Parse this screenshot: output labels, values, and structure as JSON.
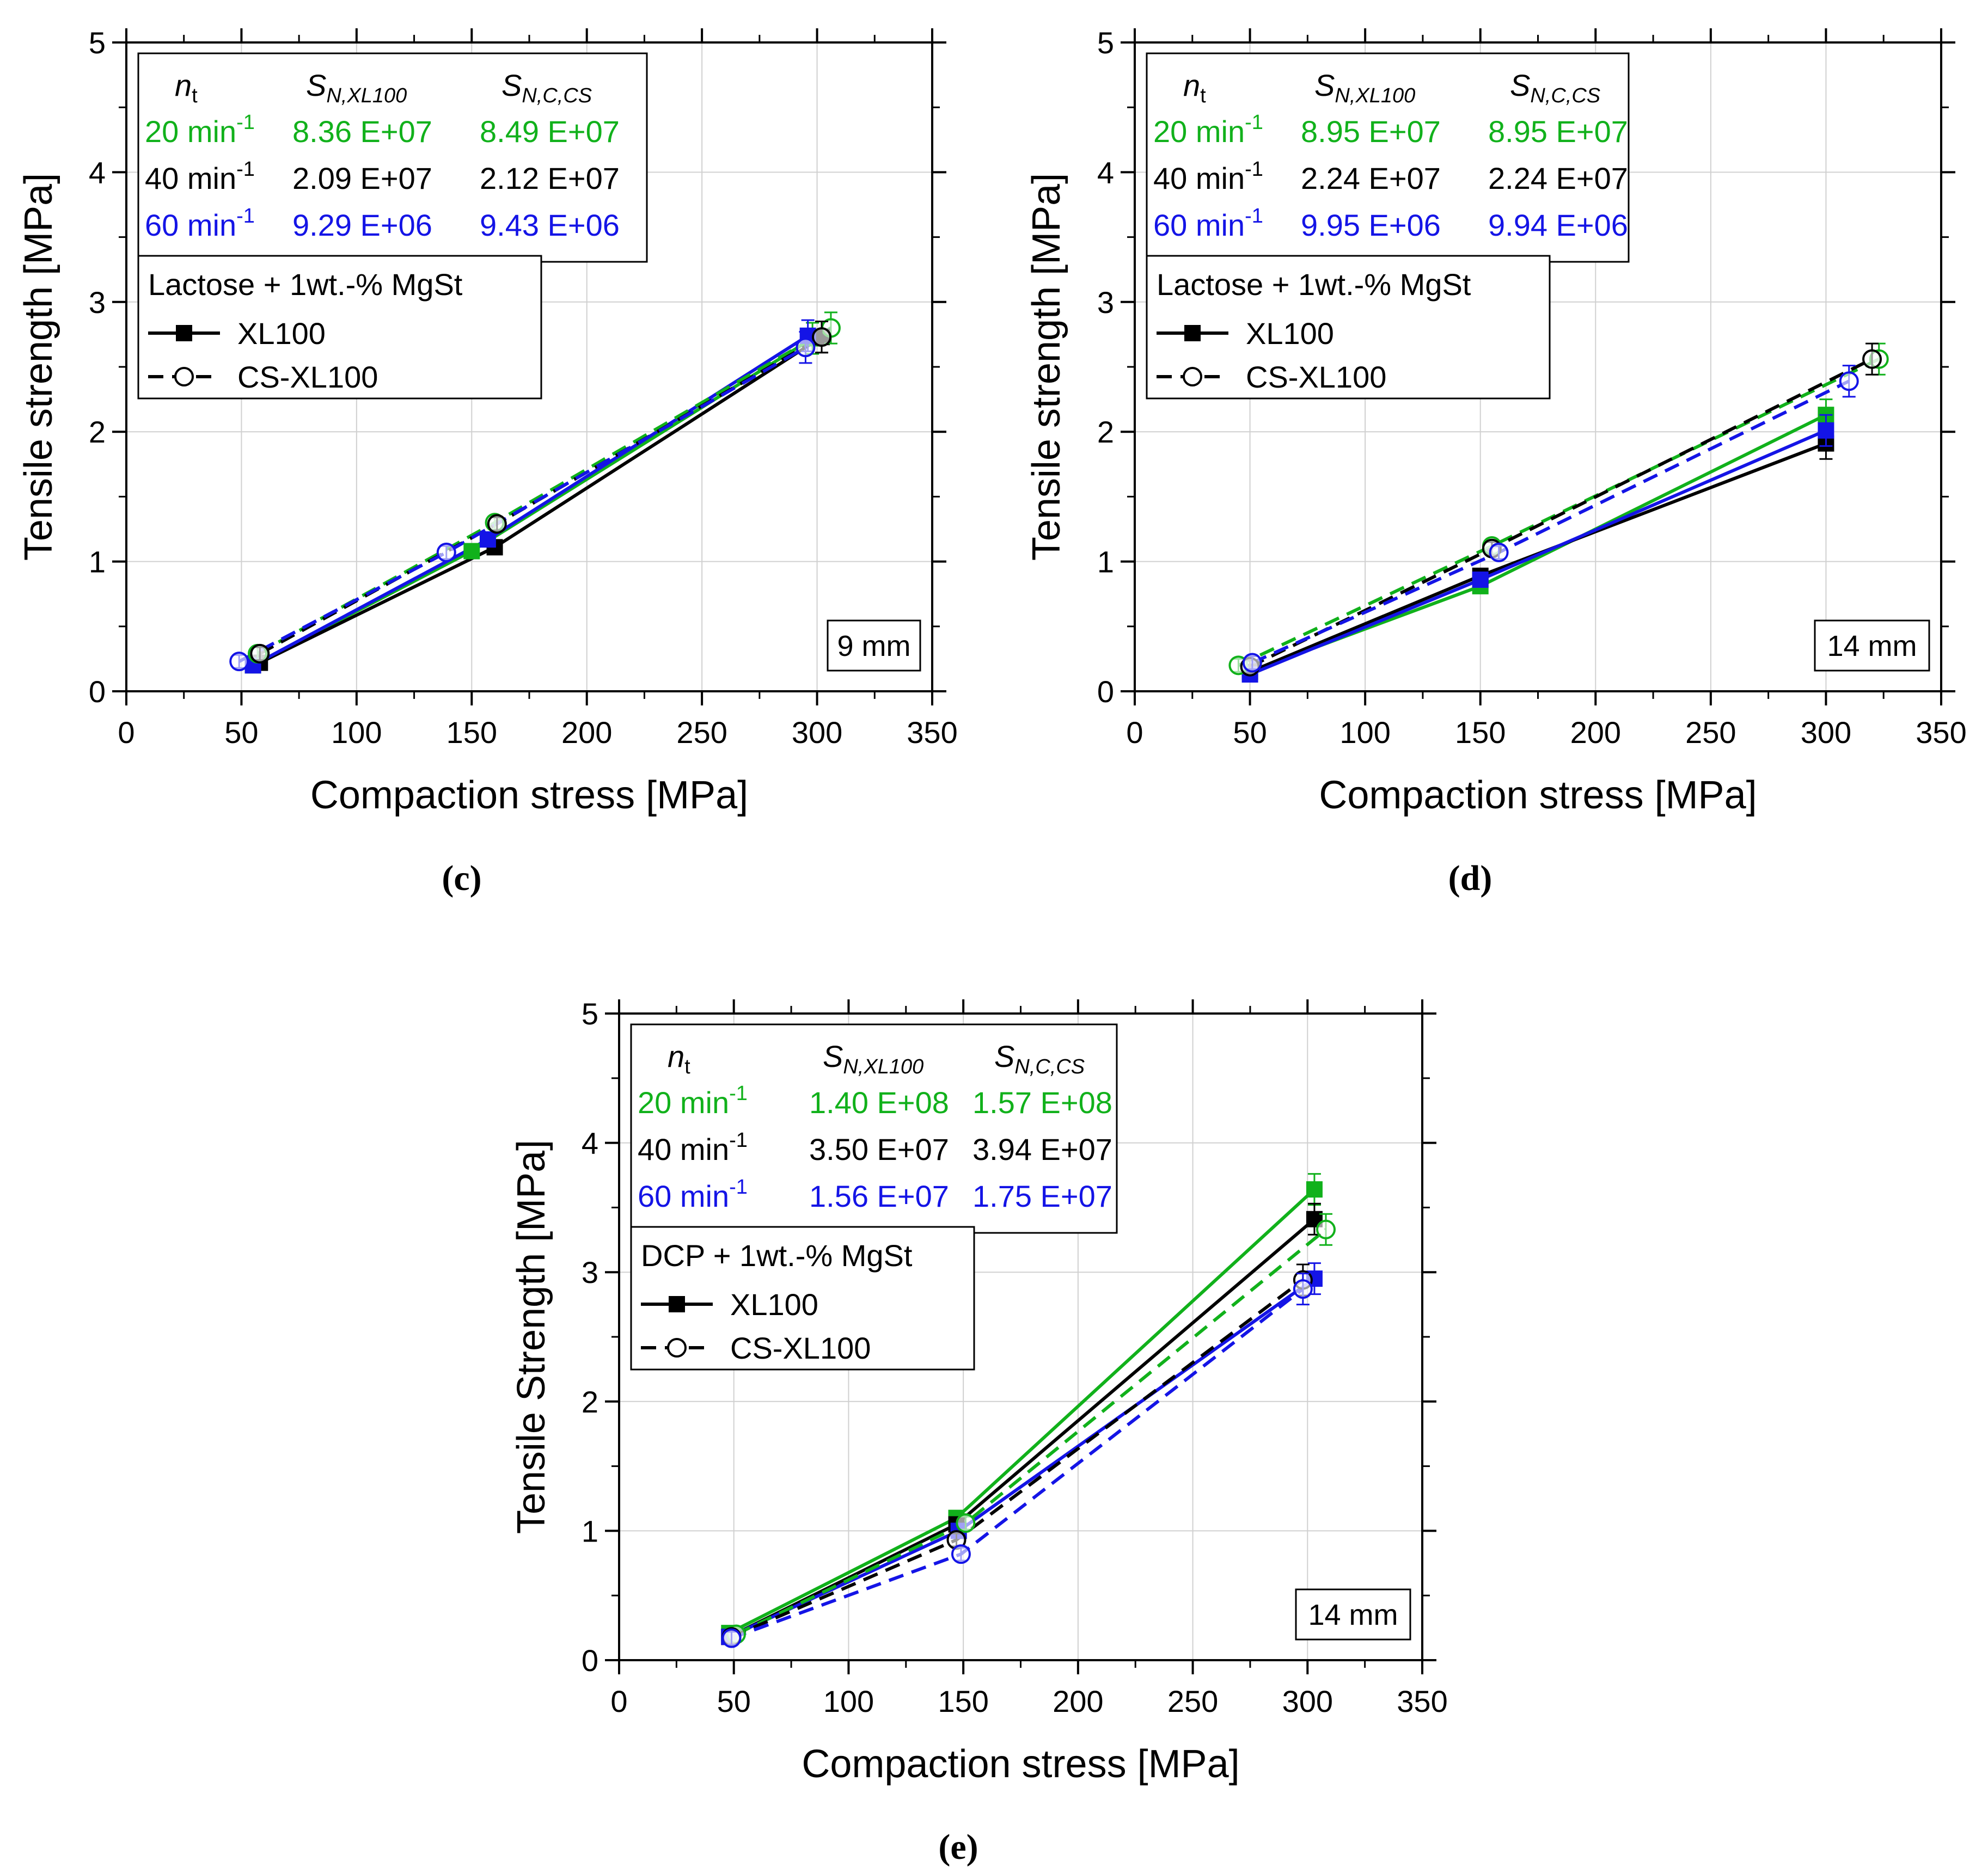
{
  "colors": {
    "green": "#11b11b",
    "black": "#000000",
    "blue": "#1414e6",
    "grid": "#d0d0d0"
  },
  "chart_data": [
    {
      "panel": "c",
      "type": "line",
      "caption": "(c)",
      "xlabel": "Compaction stress [MPa]",
      "ylabel": "Tensile strength [MPa]",
      "xlim": [
        0,
        350
      ],
      "ylim": [
        0,
        5
      ],
      "xticks": [
        "0",
        "50",
        "100",
        "150",
        "200",
        "250",
        "300",
        "350"
      ],
      "yticks": [
        "0",
        "1",
        "2",
        "3",
        "4",
        "5"
      ],
      "size_label": "9 mm",
      "table": {
        "headers": {
          "nt": "n",
          "nt_sub": "t",
          "col1": "S",
          "col1_sub": "N,XL100",
          "col2": "S",
          "col2_sub": "N,C,CS"
        },
        "rows": [
          {
            "label": "20 min",
            "exp": "-1",
            "v1": "8.36 E+07",
            "v2": "8.49 E+07",
            "color": "green"
          },
          {
            "label": "40 min",
            "exp": "-1",
            "v1": "2.09 E+07",
            "v2": "2.12 E+07",
            "color": "black"
          },
          {
            "label": "60 min",
            "exp": "-1",
            "v1": "9.29 E+06",
            "v2": "9.43 E+06",
            "color": "blue"
          }
        ]
      },
      "legend": {
        "title": "Lactose + 1wt.-% MgSt",
        "solid": "XL100",
        "dashed": "CS-XL100"
      },
      "series": [
        {
          "name": "XL100 20 min-1",
          "color": "green",
          "style": "solid",
          "marker": "square",
          "x": [
            55,
            150,
            298
          ],
          "y": [
            0.2,
            1.08,
            2.72
          ]
        },
        {
          "name": "XL100 40 min-1",
          "color": "black",
          "style": "solid",
          "marker": "square",
          "x": [
            58,
            160,
            302
          ],
          "y": [
            0.22,
            1.11,
            2.73
          ]
        },
        {
          "name": "XL100 60 min-1",
          "color": "blue",
          "style": "solid",
          "marker": "square",
          "x": [
            55,
            157,
            296
          ],
          "y": [
            0.2,
            1.17,
            2.74
          ]
        },
        {
          "name": "CS-XL100 20 min-1",
          "color": "green",
          "style": "dashed",
          "marker": "circle",
          "x": [
            57,
            160,
            306
          ],
          "y": [
            0.29,
            1.3,
            2.8
          ]
        },
        {
          "name": "CS-XL100 40 min-1",
          "color": "black",
          "style": "dashed",
          "marker": "circle",
          "x": [
            58,
            161,
            302
          ],
          "y": [
            0.29,
            1.29,
            2.73
          ]
        },
        {
          "name": "CS-XL100 60 min-1",
          "color": "blue",
          "style": "dashed",
          "marker": "circle",
          "x": [
            49,
            139,
            295
          ],
          "y": [
            0.23,
            1.07,
            2.65
          ]
        }
      ]
    },
    {
      "panel": "d",
      "type": "line",
      "caption": "(d)",
      "xlabel": "Compaction stress [MPa]",
      "ylabel": "Tensile strength [MPa]",
      "xlim": [
        0,
        350
      ],
      "ylim": [
        0,
        5
      ],
      "xticks": [
        "0",
        "50",
        "100",
        "150",
        "200",
        "250",
        "300",
        "350"
      ],
      "yticks": [
        "0",
        "1",
        "2",
        "3",
        "4",
        "5"
      ],
      "size_label": "14 mm",
      "table": {
        "headers": {
          "nt": "n",
          "nt_sub": "t",
          "col1": "S",
          "col1_sub": "N,XL100",
          "col2": "S",
          "col2_sub": "N,C,CS"
        },
        "rows": [
          {
            "label": "20 min",
            "exp": "-1",
            "v1": "8.95 E+07",
            "v2": "8.95 E+07",
            "color": "green"
          },
          {
            "label": "40 min",
            "exp": "-1",
            "v1": "2.24 E+07",
            "v2": "2.24 E+07",
            "color": "black"
          },
          {
            "label": "60 min",
            "exp": "-1",
            "v1": "9.95 E+06",
            "v2": "9.94 E+06",
            "color": "blue"
          }
        ]
      },
      "legend": {
        "title": "Lactose + 1wt.-% MgSt",
        "solid": "XL100",
        "dashed": "CS-XL100"
      },
      "series": [
        {
          "name": "XL100 20 min-1",
          "color": "green",
          "style": "solid",
          "marker": "square",
          "x": [
            50,
            150,
            300
          ],
          "y": [
            0.15,
            0.81,
            2.13
          ]
        },
        {
          "name": "XL100 40 min-1",
          "color": "black",
          "style": "solid",
          "marker": "square",
          "x": [
            50,
            150,
            300
          ],
          "y": [
            0.15,
            0.89,
            1.91
          ]
        },
        {
          "name": "XL100 60 min-1",
          "color": "blue",
          "style": "solid",
          "marker": "square",
          "x": [
            50,
            150,
            300
          ],
          "y": [
            0.13,
            0.86,
            2.01
          ]
        },
        {
          "name": "CS-XL100 20 min-1",
          "color": "green",
          "style": "dashed",
          "marker": "circle",
          "x": [
            45,
            155,
            323
          ],
          "y": [
            0.2,
            1.12,
            2.56
          ]
        },
        {
          "name": "CS-XL100 40 min-1",
          "color": "black",
          "style": "dashed",
          "marker": "circle",
          "x": [
            50,
            155,
            320
          ],
          "y": [
            0.19,
            1.1,
            2.56
          ]
        },
        {
          "name": "CS-XL100 60 min-1",
          "color": "blue",
          "style": "dashed",
          "marker": "circle",
          "x": [
            51,
            158,
            310
          ],
          "y": [
            0.22,
            1.07,
            2.39
          ]
        }
      ]
    },
    {
      "panel": "e",
      "type": "line",
      "caption": "(e)",
      "xlabel": "Compaction stress [MPa]",
      "ylabel": "Tensile Strength [MPa]",
      "xlim": [
        0,
        350
      ],
      "ylim": [
        0,
        5
      ],
      "xticks": [
        "0",
        "50",
        "100",
        "150",
        "200",
        "250",
        "300",
        "350"
      ],
      "yticks": [
        "0",
        "1",
        "2",
        "3",
        "4",
        "5"
      ],
      "size_label": "14 mm",
      "table": {
        "headers": {
          "nt": "n",
          "nt_sub": "t",
          "col1": "S",
          "col1_sub": "N,XL100",
          "col2": "S",
          "col2_sub": "N,C,CS"
        },
        "rows": [
          {
            "label": "20 min",
            "exp": "-1",
            "v1": "1.40 E+08",
            "v2": "1.57 E+08",
            "color": "green"
          },
          {
            "label": "40 min",
            "exp": "-1",
            "v1": "3.50 E+07",
            "v2": "3.94 E+07",
            "color": "black"
          },
          {
            "label": "60 min",
            "exp": "-1",
            "v1": "1.56 E+07",
            "v2": "1.75 E+07",
            "color": "blue"
          }
        ]
      },
      "legend": {
        "title": "DCP + 1wt.-% MgSt",
        "solid": "XL100",
        "dashed": "CS-XL100"
      },
      "series": [
        {
          "name": "XL100 20 min-1",
          "color": "green",
          "style": "solid",
          "marker": "square",
          "x": [
            48,
            147,
            303
          ],
          "y": [
            0.21,
            1.1,
            3.64
          ]
        },
        {
          "name": "XL100 40 min-1",
          "color": "black",
          "style": "solid",
          "marker": "square",
          "x": [
            48,
            147,
            303
          ],
          "y": [
            0.18,
            1.05,
            3.41
          ]
        },
        {
          "name": "XL100 60 min-1",
          "color": "blue",
          "style": "solid",
          "marker": "square",
          "x": [
            48,
            148,
            303
          ],
          "y": [
            0.18,
            1.0,
            2.95
          ]
        },
        {
          "name": "CS-XL100 20 min-1",
          "color": "green",
          "style": "dashed",
          "marker": "circle",
          "x": [
            51,
            151,
            308
          ],
          "y": [
            0.2,
            1.06,
            3.33
          ]
        },
        {
          "name": "CS-XL100 40 min-1",
          "color": "black",
          "style": "dashed",
          "marker": "circle",
          "x": [
            49,
            147,
            298
          ],
          "y": [
            0.18,
            0.93,
            2.94
          ]
        },
        {
          "name": "CS-XL100 60 min-1",
          "color": "blue",
          "style": "dashed",
          "marker": "circle",
          "x": [
            49,
            149,
            298
          ],
          "y": [
            0.17,
            0.82,
            2.87
          ]
        }
      ]
    }
  ]
}
